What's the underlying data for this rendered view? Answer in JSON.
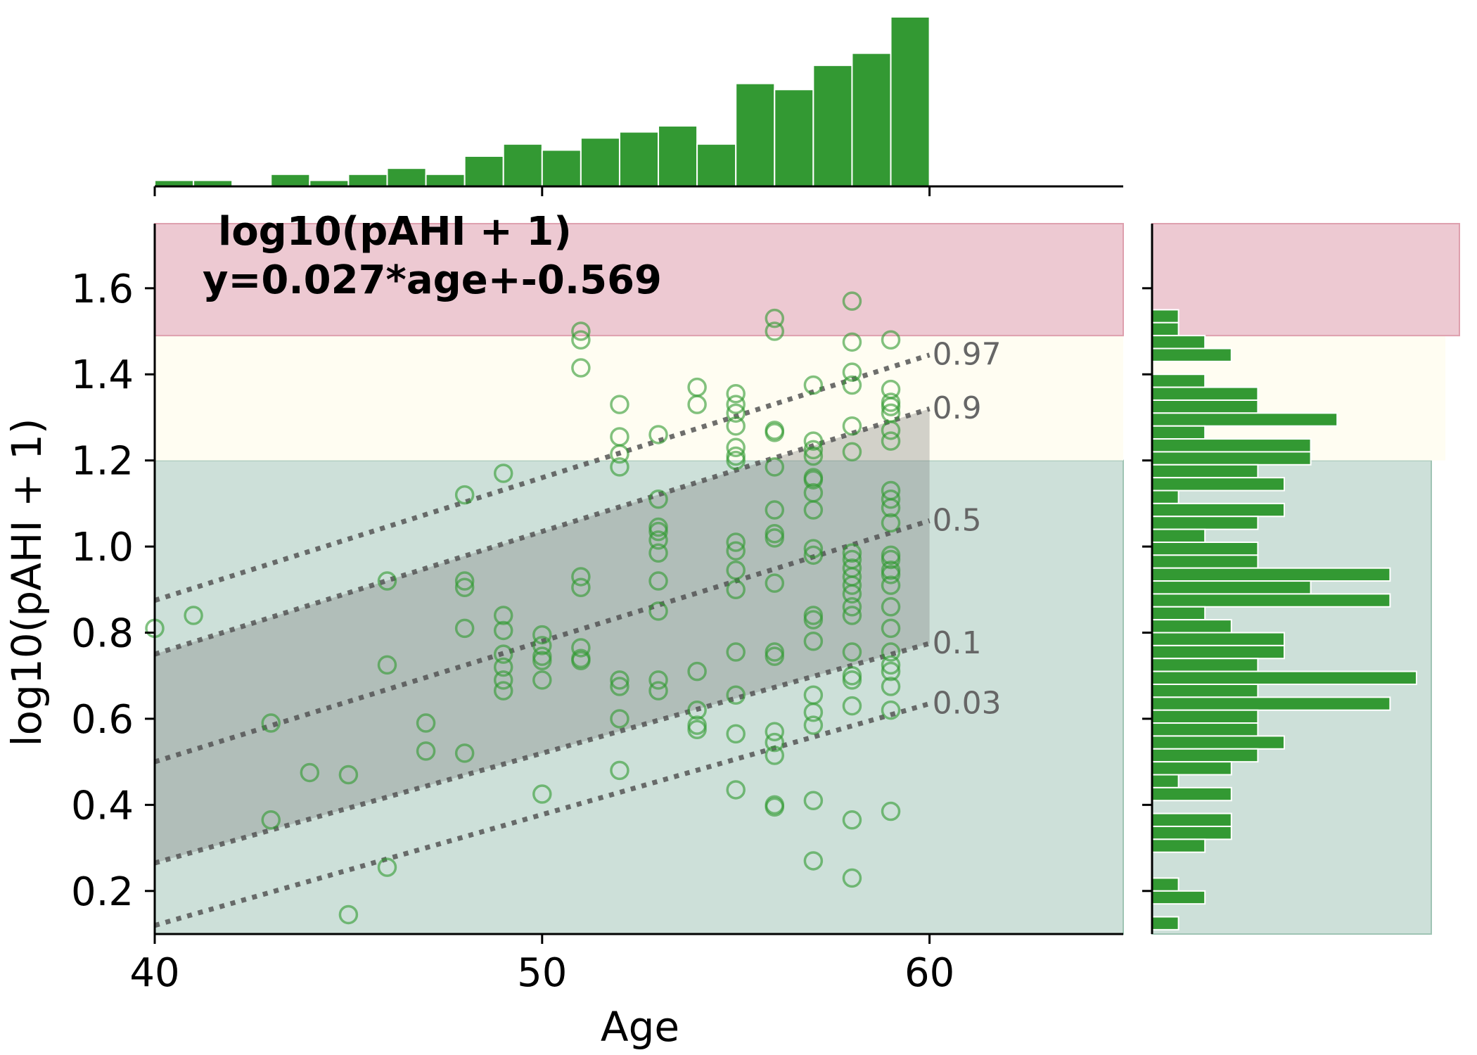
{
  "chart_data": {
    "type": "scatter",
    "xlabel": "Age",
    "ylabel": "log10(pAHI + 1)",
    "xlim": [
      40,
      65
    ],
    "ylim": [
      0.1,
      1.75
    ],
    "xticks": [
      "40",
      "50",
      "60"
    ],
    "yticks": [
      "0.2",
      "0.4",
      "0.6",
      "0.8",
      "1.0",
      "1.2",
      "1.4",
      "1.6"
    ],
    "annotation_line1": "log10(pAHI + 1)",
    "annotation_line2": "y=0.027*age+-0.569",
    "bands": [
      {
        "ymin": 0.1,
        "ymax": 1.2,
        "color": "#cde0d9"
      },
      {
        "ymin": 1.2,
        "ymax": 1.49,
        "color": "#fffdf2"
      },
      {
        "ymin": 1.49,
        "ymax": 1.75,
        "color": "#edc9d2"
      }
    ],
    "quantile_lines": [
      {
        "label": "0.97",
        "x": [
          40,
          60
        ],
        "y": [
          0.875,
          1.445
        ]
      },
      {
        "label": "0.9",
        "x": [
          40,
          60
        ],
        "y": [
          0.75,
          1.32
        ]
      },
      {
        "label": "0.5",
        "x": [
          40,
          60
        ],
        "y": [
          0.5,
          1.06
        ]
      },
      {
        "label": "0.1",
        "x": [
          40,
          60
        ],
        "y": [
          0.265,
          0.775
        ]
      },
      {
        "label": "0.03",
        "x": [
          40,
          60
        ],
        "y": [
          0.12,
          0.635
        ]
      }
    ],
    "shaded_interval": {
      "lower": "0.1",
      "upper": "0.9"
    },
    "marker_color": "#2e9a2e",
    "bar_color": "#339933",
    "points": [
      [
        40,
        0.81
      ],
      [
        41,
        0.84
      ],
      [
        43,
        0.59
      ],
      [
        43,
        0.365
      ],
      [
        44,
        0.475
      ],
      [
        45,
        0.47
      ],
      [
        45,
        0.145
      ],
      [
        46,
        0.92
      ],
      [
        46,
        0.725
      ],
      [
        46,
        0.255
      ],
      [
        47,
        0.59
      ],
      [
        47,
        0.525
      ],
      [
        48,
        1.12
      ],
      [
        48,
        0.92
      ],
      [
        48,
        0.905
      ],
      [
        48,
        0.81
      ],
      [
        48,
        0.52
      ],
      [
        49,
        1.17
      ],
      [
        49,
        0.84
      ],
      [
        49,
        0.805
      ],
      [
        49,
        0.75
      ],
      [
        49,
        0.72
      ],
      [
        49,
        0.69
      ],
      [
        49,
        0.665
      ],
      [
        50,
        0.795
      ],
      [
        50,
        0.77
      ],
      [
        50,
        0.745
      ],
      [
        50,
        0.735
      ],
      [
        50,
        0.69
      ],
      [
        50,
        0.425
      ],
      [
        51,
        1.5
      ],
      [
        51,
        1.48
      ],
      [
        51,
        1.415
      ],
      [
        51,
        0.93
      ],
      [
        51,
        0.905
      ],
      [
        51,
        0.765
      ],
      [
        51,
        0.74
      ],
      [
        51,
        0.735
      ],
      [
        52,
        1.33
      ],
      [
        52,
        1.255
      ],
      [
        52,
        1.215
      ],
      [
        52,
        1.185
      ],
      [
        52,
        0.69
      ],
      [
        52,
        0.675
      ],
      [
        52,
        0.6
      ],
      [
        52,
        0.48
      ],
      [
        53,
        1.26
      ],
      [
        53,
        1.11
      ],
      [
        53,
        1.045
      ],
      [
        53,
        1.035
      ],
      [
        53,
        1.015
      ],
      [
        53,
        0.985
      ],
      [
        53,
        0.92
      ],
      [
        53,
        0.85
      ],
      [
        53,
        0.69
      ],
      [
        53,
        0.665
      ],
      [
        54,
        1.37
      ],
      [
        54,
        1.33
      ],
      [
        54,
        0.71
      ],
      [
        54,
        0.62
      ],
      [
        54,
        0.585
      ],
      [
        54,
        0.575
      ],
      [
        55,
        1.355
      ],
      [
        55,
        1.33
      ],
      [
        55,
        1.31
      ],
      [
        55,
        1.28
      ],
      [
        55,
        1.23
      ],
      [
        55,
        1.21
      ],
      [
        55,
        1.2
      ],
      [
        55,
        1.01
      ],
      [
        55,
        0.99
      ],
      [
        55,
        0.945
      ],
      [
        55,
        0.9
      ],
      [
        55,
        0.755
      ],
      [
        55,
        0.655
      ],
      [
        55,
        0.565
      ],
      [
        55,
        0.435
      ],
      [
        56,
        1.53
      ],
      [
        56,
        1.5
      ],
      [
        56,
        1.27
      ],
      [
        56,
        1.265
      ],
      [
        56,
        1.185
      ],
      [
        56,
        1.085
      ],
      [
        56,
        1.03
      ],
      [
        56,
        1.02
      ],
      [
        56,
        0.915
      ],
      [
        56,
        0.755
      ],
      [
        56,
        0.745
      ],
      [
        56,
        0.57
      ],
      [
        56,
        0.545
      ],
      [
        56,
        0.515
      ],
      [
        56,
        0.4
      ],
      [
        56,
        0.395
      ],
      [
        57,
        1.375
      ],
      [
        57,
        1.245
      ],
      [
        57,
        1.225
      ],
      [
        57,
        1.21
      ],
      [
        57,
        1.16
      ],
      [
        57,
        1.155
      ],
      [
        57,
        1.125
      ],
      [
        57,
        1.085
      ],
      [
        57,
        0.995
      ],
      [
        57,
        0.98
      ],
      [
        57,
        0.84
      ],
      [
        57,
        0.83
      ],
      [
        57,
        0.78
      ],
      [
        57,
        0.655
      ],
      [
        57,
        0.615
      ],
      [
        57,
        0.585
      ],
      [
        57,
        0.41
      ],
      [
        57,
        0.27
      ],
      [
        58,
        1.57
      ],
      [
        58,
        1.475
      ],
      [
        58,
        1.405
      ],
      [
        58,
        1.375
      ],
      [
        58,
        1.28
      ],
      [
        58,
        1.22
      ],
      [
        58,
        0.985
      ],
      [
        58,
        0.97
      ],
      [
        58,
        0.95
      ],
      [
        58,
        0.93
      ],
      [
        58,
        0.91
      ],
      [
        58,
        0.89
      ],
      [
        58,
        0.86
      ],
      [
        58,
        0.84
      ],
      [
        58,
        0.755
      ],
      [
        58,
        0.7
      ],
      [
        58,
        0.69
      ],
      [
        58,
        0.63
      ],
      [
        58,
        0.365
      ],
      [
        58,
        0.23
      ],
      [
        59,
        1.48
      ],
      [
        59,
        1.365
      ],
      [
        59,
        1.335
      ],
      [
        59,
        1.325
      ],
      [
        59,
        1.31
      ],
      [
        59,
        1.27
      ],
      [
        59,
        1.245
      ],
      [
        59,
        1.13
      ],
      [
        59,
        1.11
      ],
      [
        59,
        1.09
      ],
      [
        59,
        1.055
      ],
      [
        59,
        0.98
      ],
      [
        59,
        0.97
      ],
      [
        59,
        0.945
      ],
      [
        59,
        0.935
      ],
      [
        59,
        0.91
      ],
      [
        59,
        0.86
      ],
      [
        59,
        0.81
      ],
      [
        59,
        0.755
      ],
      [
        59,
        0.725
      ],
      [
        59,
        0.71
      ],
      [
        59,
        0.675
      ],
      [
        59,
        0.62
      ],
      [
        59,
        0.385
      ]
    ],
    "top_histogram": {
      "bin_edges": [
        40,
        41,
        42,
        43,
        44,
        45,
        46,
        47,
        48,
        49,
        50,
        51,
        52,
        53,
        54,
        55,
        56,
        57,
        58,
        59,
        60
      ],
      "counts": [
        1,
        1,
        0,
        2,
        1,
        2,
        3,
        2,
        5,
        7,
        6,
        8,
        9,
        10,
        7,
        17,
        16,
        20,
        22,
        28
      ]
    },
    "right_histogram": {
      "bin_width": 0.03,
      "bins": [
        [
          1.52,
          2
        ],
        [
          1.49,
          2
        ],
        [
          1.46,
          4
        ],
        [
          1.43,
          6
        ],
        [
          1.37,
          4
        ],
        [
          1.34,
          8
        ],
        [
          1.31,
          8
        ],
        [
          1.28,
          14
        ],
        [
          1.25,
          4
        ],
        [
          1.22,
          12
        ],
        [
          1.19,
          12
        ],
        [
          1.16,
          8
        ],
        [
          1.13,
          10
        ],
        [
          1.1,
          2
        ],
        [
          1.07,
          10
        ],
        [
          1.04,
          8
        ],
        [
          1.01,
          4
        ],
        [
          0.98,
          8
        ],
        [
          0.95,
          8
        ],
        [
          0.92,
          18
        ],
        [
          0.89,
          12
        ],
        [
          0.86,
          18
        ],
        [
          0.83,
          4
        ],
        [
          0.8,
          6
        ],
        [
          0.77,
          10
        ],
        [
          0.74,
          10
        ],
        [
          0.71,
          8
        ],
        [
          0.68,
          20
        ],
        [
          0.65,
          8
        ],
        [
          0.62,
          18
        ],
        [
          0.59,
          8
        ],
        [
          0.56,
          8
        ],
        [
          0.53,
          10
        ],
        [
          0.5,
          8
        ],
        [
          0.47,
          6
        ],
        [
          0.44,
          2
        ],
        [
          0.41,
          6
        ],
        [
          0.35,
          6
        ],
        [
          0.32,
          6
        ],
        [
          0.29,
          4
        ],
        [
          0.2,
          2
        ],
        [
          0.17,
          4
        ],
        [
          0.11,
          2
        ]
      ]
    }
  }
}
